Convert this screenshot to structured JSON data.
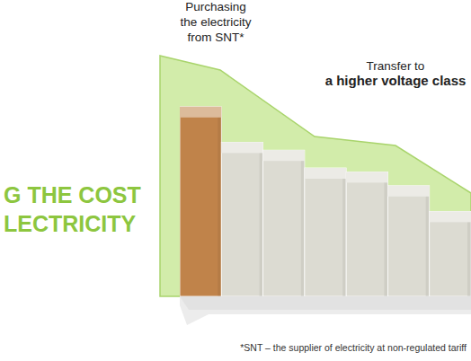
{
  "chart_data": {
    "type": "bar",
    "title": [
      "G THE COST",
      "LECTRICITY"
    ],
    "annotations": [
      [
        "Purchasing",
        "the electricity",
        "from SNT*"
      ],
      [
        "Transfer to",
        "a higher voltage class"
      ]
    ],
    "footnote": "*SNT – the supplier of electricity at non-regulated tariff",
    "categories": [
      null,
      null,
      null,
      null,
      null,
      null,
      null
    ],
    "values": [
      96,
      78,
      74,
      65,
      63,
      56,
      43
    ],
    "colors": [
      "#c0834a",
      "#dcdbd2",
      "#dcdbd2",
      "#dcdbd2",
      "#dcdbd2",
      "#dcdbd2",
      "#dcdbd2"
    ],
    "ylim": [
      0,
      100
    ],
    "tick_labels": false
  }
}
